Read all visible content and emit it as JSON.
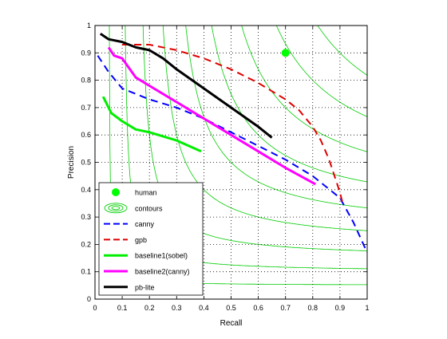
{
  "chart_data": {
    "type": "line",
    "title": "",
    "xlabel": "Recall",
    "ylabel": "Precision",
    "xlim": [
      0,
      1
    ],
    "ylim": [
      0,
      1
    ],
    "grid": true,
    "legend_position": "bottom-left",
    "x_ticks": [
      0,
      0.1,
      0.2,
      0.3,
      0.4,
      0.5,
      0.6,
      0.7,
      0.8,
      0.9,
      1
    ],
    "y_ticks": [
      0,
      0.1,
      0.2,
      0.3,
      0.4,
      0.5,
      0.6,
      0.7,
      0.8,
      0.9,
      1
    ],
    "x_tick_labels": [
      "0",
      "0.1",
      "0.2",
      "0.3",
      "0.4",
      "0.5",
      "0.6",
      "0.7",
      "0.8",
      "0.9",
      "1"
    ],
    "y_tick_labels": [
      "0",
      "0.1",
      "0.2",
      "0.3",
      "0.4",
      "0.5",
      "0.6",
      "0.7",
      "0.8",
      "0.9",
      "1"
    ],
    "contours": {
      "name": "contours",
      "kind": "iso-F-measure",
      "levels": [
        0.1,
        0.2,
        0.3,
        0.4,
        0.5,
        0.6,
        0.7,
        0.8,
        0.9
      ],
      "color": "#00cc00"
    },
    "series": [
      {
        "name": "human",
        "style": "marker",
        "color": "#00ff00",
        "x": [
          0.7
        ],
        "y": [
          0.9
        ]
      },
      {
        "name": "canny",
        "style": "dashed",
        "color": "#0000ff",
        "x": [
          0.01,
          0.05,
          0.1,
          0.2,
          0.3,
          0.4,
          0.5,
          0.6,
          0.7,
          0.8,
          0.9,
          0.95,
          1.0
        ],
        "y": [
          0.89,
          0.83,
          0.77,
          0.73,
          0.7,
          0.66,
          0.61,
          0.56,
          0.51,
          0.45,
          0.37,
          0.28,
          0.17
        ]
      },
      {
        "name": "gpb",
        "style": "dashed",
        "color": "#e00000",
        "x": [
          0.1,
          0.2,
          0.3,
          0.4,
          0.5,
          0.6,
          0.7,
          0.75,
          0.8,
          0.83,
          0.86,
          0.88,
          0.9,
          0.91
        ],
        "y": [
          0.93,
          0.93,
          0.91,
          0.88,
          0.84,
          0.79,
          0.73,
          0.69,
          0.63,
          0.58,
          0.51,
          0.45,
          0.39,
          0.35
        ]
      },
      {
        "name": "baseline1(sobel)",
        "style": "solid",
        "color": "#00ee00",
        "x": [
          0.03,
          0.06,
          0.1,
          0.15,
          0.2,
          0.3,
          0.39
        ],
        "y": [
          0.74,
          0.68,
          0.65,
          0.62,
          0.61,
          0.58,
          0.54
        ]
      },
      {
        "name": "baseline2(canny)",
        "style": "solid",
        "color": "#ff00ff",
        "x": [
          0.05,
          0.07,
          0.1,
          0.15,
          0.2,
          0.3,
          0.4,
          0.5,
          0.6,
          0.7,
          0.81
        ],
        "y": [
          0.92,
          0.89,
          0.88,
          0.81,
          0.78,
          0.72,
          0.66,
          0.6,
          0.54,
          0.48,
          0.42
        ]
      },
      {
        "name": "pb-lite",
        "style": "solid",
        "color": "#000000",
        "x": [
          0.02,
          0.05,
          0.1,
          0.15,
          0.2,
          0.25,
          0.3,
          0.4,
          0.5,
          0.6,
          0.65
        ],
        "y": [
          0.97,
          0.95,
          0.94,
          0.92,
          0.91,
          0.88,
          0.84,
          0.77,
          0.7,
          0.63,
          0.59
        ]
      }
    ]
  }
}
